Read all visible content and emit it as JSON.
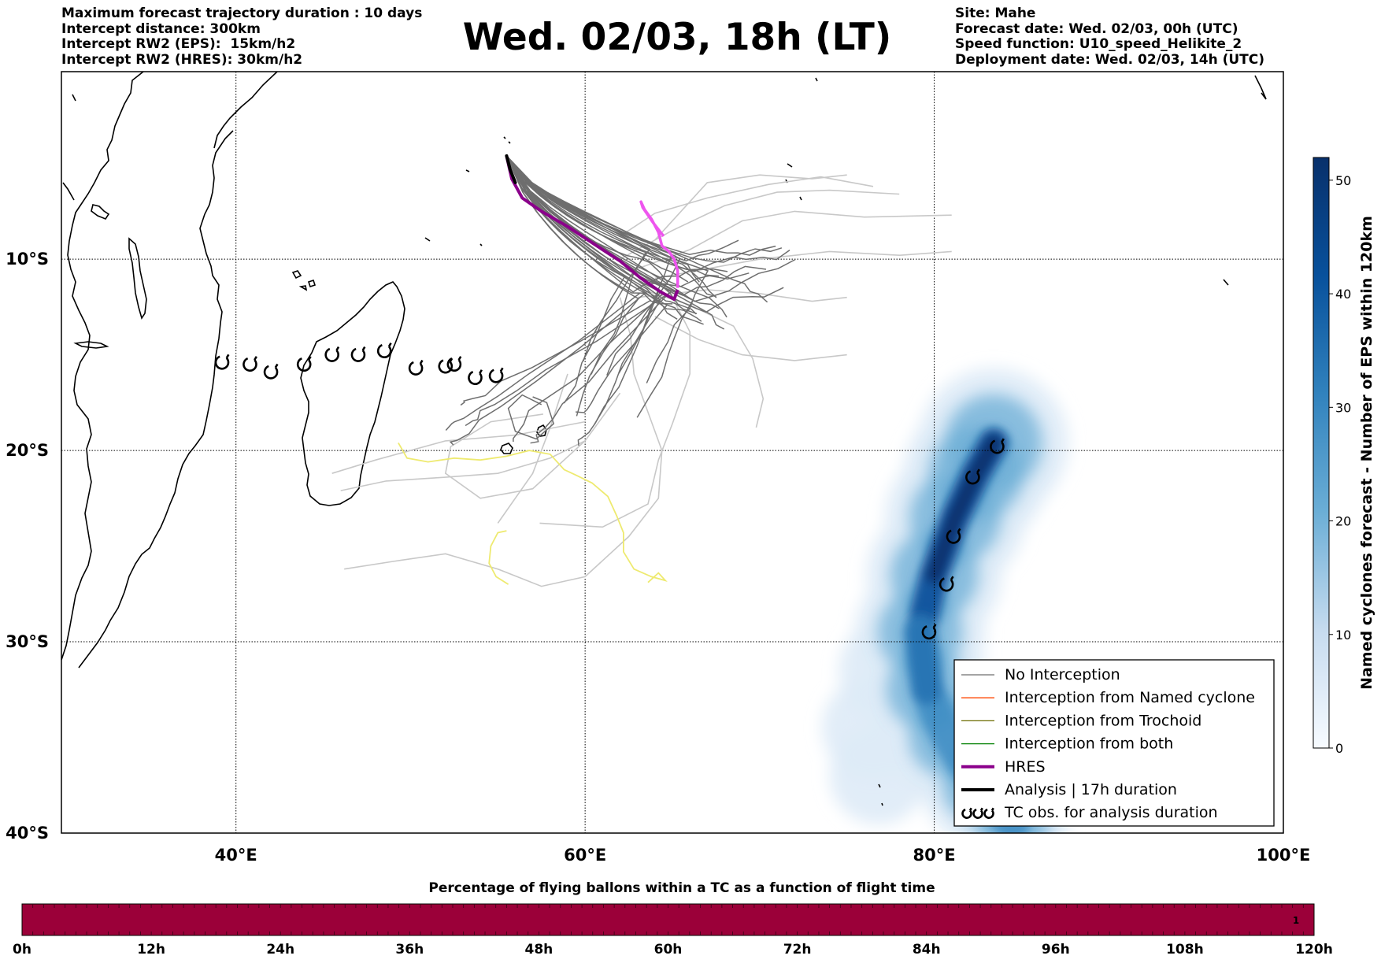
{
  "header": {
    "left_lines": [
      "Maximum forecast trajectory duration : 10 days",
      "Intercept distance: 300km",
      "Intercept RW2 (EPS):  15km/h2",
      "Intercept RW2 (HRES): 30km/h2"
    ],
    "right_lines": [
      "Site: Mahe",
      "Forecast date: Wed. 02/03, 00h (UTC)",
      "Speed function: U10_speed_Helikite_2",
      "Deployment date: Wed. 02/03, 14h (UTC)"
    ],
    "title": "Wed. 02/03, 18h (LT)"
  },
  "map": {
    "lon_range": [
      30,
      100
    ],
    "lat_range": [
      -40,
      -0.2
    ],
    "lon_ticks": [
      {
        "value": 40,
        "label": "40°E"
      },
      {
        "value": 60,
        "label": "60°E"
      },
      {
        "value": 80,
        "label": "80°E"
      },
      {
        "value": 100,
        "label": "100°E"
      }
    ],
    "lat_ticks": [
      {
        "value": -10,
        "label": "10°S"
      },
      {
        "value": -20,
        "label": "20°S"
      },
      {
        "value": -30,
        "label": "30°S"
      },
      {
        "value": -40,
        "label": "40°S"
      }
    ],
    "site": {
      "name": "Mahe",
      "lon": 55.5,
      "lat": -4.6
    },
    "hres_track": [
      [
        55.5,
        -4.6
      ],
      [
        55.8,
        -5.8
      ],
      [
        56.4,
        -6.8
      ],
      [
        57.5,
        -7.5
      ],
      [
        59.0,
        -8.3
      ],
      [
        60.5,
        -9.2
      ],
      [
        62.0,
        -10.1
      ],
      [
        63.2,
        -11.0
      ],
      [
        64.3,
        -11.7
      ],
      [
        65.1,
        -12.1
      ],
      [
        65.3,
        -11.6
      ]
    ],
    "hres_late_track": [
      [
        65.3,
        -11.5
      ],
      [
        65.3,
        -10.6
      ],
      [
        65.1,
        -10.0
      ],
      [
        64.8,
        -9.6
      ],
      [
        64.4,
        -9.3
      ],
      [
        64.2,
        -8.6
      ],
      [
        63.8,
        -7.9
      ],
      [
        63.4,
        -7.4
      ],
      [
        63.2,
        -7.0
      ],
      [
        63.3,
        -7.3
      ],
      [
        63.9,
        -8.1
      ],
      [
        64.5,
        -8.8
      ]
    ],
    "analysis_track": [
      [
        55.5,
        -4.6
      ],
      [
        55.7,
        -5.3
      ],
      [
        56.0,
        -6.0
      ]
    ],
    "yellow_track": [
      [
        49.3,
        -19.6
      ],
      [
        49.8,
        -20.4
      ],
      [
        51.0,
        -20.6
      ],
      [
        52.5,
        -20.4
      ],
      [
        54.0,
        -20.5
      ],
      [
        55.5,
        -20.3
      ],
      [
        56.8,
        -20.0
      ],
      [
        58.0,
        -20.2
      ],
      [
        58.8,
        -21.0
      ],
      [
        59.5,
        -21.3
      ],
      [
        60.4,
        -21.7
      ],
      [
        61.3,
        -22.4
      ],
      [
        61.8,
        -23.4
      ],
      [
        62.2,
        -24.3
      ],
      [
        62.2,
        -25.3
      ],
      [
        62.8,
        -26.2
      ],
      [
        63.8,
        -26.6
      ],
      [
        64.6,
        -26.8
      ],
      [
        64.2,
        -26.4
      ],
      [
        63.6,
        -26.9
      ]
    ],
    "yellow_loop": [
      [
        55.5,
        -24.2
      ],
      [
        55.0,
        -24.3
      ],
      [
        54.6,
        -25.0
      ],
      [
        54.5,
        -25.9
      ],
      [
        54.9,
        -26.6
      ],
      [
        55.6,
        -27.0
      ]
    ],
    "tc_obs_west": [
      [
        39.2,
        -15.4
      ],
      [
        40.8,
        -15.5
      ],
      [
        42.0,
        -15.9
      ],
      [
        43.9,
        -15.5
      ],
      [
        45.5,
        -15.0
      ],
      [
        47.0,
        -15.0
      ],
      [
        48.5,
        -14.8
      ],
      [
        50.3,
        -15.7
      ],
      [
        52.0,
        -15.6
      ],
      [
        52.5,
        -15.5
      ],
      [
        53.7,
        -16.2
      ],
      [
        54.9,
        -16.1
      ]
    ],
    "tc_obs_east": [
      [
        83.6,
        -19.8
      ],
      [
        82.2,
        -21.4
      ],
      [
        81.1,
        -24.5
      ],
      [
        80.7,
        -27.0
      ],
      [
        79.7,
        -29.5
      ]
    ],
    "density_axis": [
      [
        83.4,
        -19.6
      ],
      [
        82.4,
        -21.2
      ],
      [
        81.2,
        -23.5
      ],
      [
        80.0,
        -26.5
      ],
      [
        79.2,
        -29.5
      ],
      [
        79.6,
        -32.5
      ],
      [
        80.8,
        -35.0
      ],
      [
        82.6,
        -37.5
      ],
      [
        84.5,
        -39.5
      ]
    ],
    "colors": {
      "hres": "#8b008b",
      "hres_late": "#ee55ee",
      "no_interception": "#6e6e6e",
      "named_cyclone": "#ff4500",
      "trochoid": "#6b6b00",
      "both": "#008000",
      "analysis": "#000000",
      "late_track": "#c8c8c8",
      "yellow_track": "#eeea70",
      "time_bar": "#9b0039"
    }
  },
  "legend": {
    "items": [
      {
        "label": "No Interception",
        "color": "#6e6e6e",
        "width": 1.3,
        "type": "line"
      },
      {
        "label": "Interception from Named cyclone",
        "color": "#ff4500",
        "width": 1.3,
        "type": "line"
      },
      {
        "label": "Interception from Trochoid",
        "color": "#6b6b00",
        "width": 1.3,
        "type": "line"
      },
      {
        "label": "Interception from both",
        "color": "#008000",
        "width": 1.3,
        "type": "line"
      },
      {
        "label": "HRES",
        "color": "#8b008b",
        "width": 4,
        "type": "line"
      },
      {
        "label": "Analysis | 17h duration",
        "color": "#000000",
        "width": 4,
        "type": "line"
      },
      {
        "label": "TC obs. for analysis duration",
        "color": "#000000",
        "width": 2,
        "type": "symbol"
      }
    ]
  },
  "colorbar": {
    "label": "Named cyclones forecast - Number of EPS within 120km",
    "min": 0,
    "max": 52,
    "ticks": [
      0,
      10,
      20,
      30,
      40,
      50
    ]
  },
  "time_bar": {
    "title": "Percentage of flying ballons within a TC as a function of flight time",
    "ticks": [
      "0h",
      "12h",
      "24h",
      "36h",
      "48h",
      "60h",
      "72h",
      "84h",
      "96h",
      "108h",
      "120h"
    ],
    "value_label": "1"
  }
}
